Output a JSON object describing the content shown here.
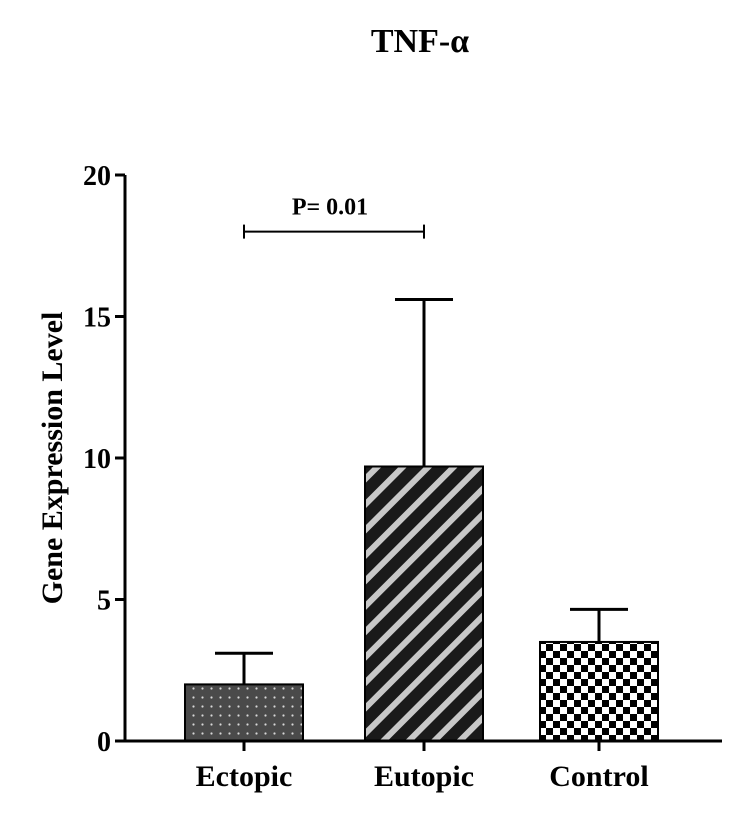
{
  "chart_data": {
    "type": "bar",
    "title": "TNF-α",
    "xlabel": "",
    "ylabel": "Gene Expression Level",
    "ylim": [
      0,
      20
    ],
    "yticks": [
      0,
      5,
      10,
      15,
      20
    ],
    "categories": [
      "Ectopic",
      "Eutopic",
      "Control"
    ],
    "values": [
      2.0,
      9.7,
      3.5
    ],
    "errors": [
      1.1,
      5.9,
      1.15
    ],
    "patterns": [
      "dots",
      "diagonal-stripes",
      "checkerboard"
    ],
    "grid": false,
    "legend": "none",
    "annotations": [
      {
        "text": "P= 0.01",
        "from": "Ectopic",
        "to": "Eutopic",
        "y": 18.0
      }
    ]
  }
}
